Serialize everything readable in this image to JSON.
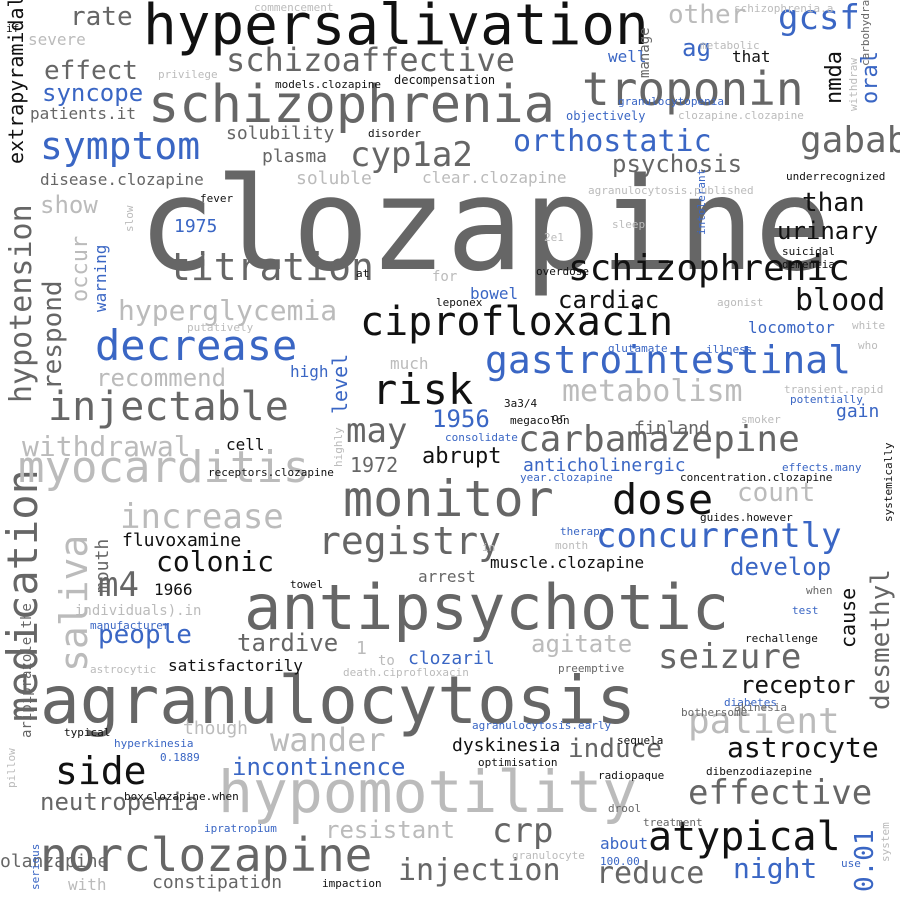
{
  "palette": {
    "dark": "#666666",
    "black": "#111111",
    "blue": "#3a66c4",
    "light": "#bbbbbb"
  },
  "words": [
    {
      "t": "clozapine",
      "c": "dark"
    },
    {
      "t": "agranulocytosis",
      "c": "dark"
    },
    {
      "t": "antipsychotic",
      "c": "dark"
    },
    {
      "t": "hypersalivation",
      "c": "black"
    },
    {
      "t": "hypomotility",
      "c": "light"
    },
    {
      "t": "schizophrenia",
      "c": "dark"
    },
    {
      "t": "norclozapine",
      "c": "dark"
    },
    {
      "t": "monitor",
      "c": "dark"
    },
    {
      "t": "ciprofloxacin",
      "c": "black"
    },
    {
      "t": "troponin",
      "c": "dark"
    },
    {
      "t": "medication",
      "c": "dark"
    },
    {
      "t": "myocarditis",
      "c": "light"
    },
    {
      "t": "schizophrenic",
      "c": "black"
    },
    {
      "t": "gastrointestinal",
      "c": "blue"
    },
    {
      "t": "decrease",
      "c": "blue"
    },
    {
      "t": "titration",
      "c": "dark"
    },
    {
      "t": "injectable",
      "c": "dark"
    },
    {
      "t": "carbamazepine",
      "c": "dark"
    },
    {
      "t": "atypical",
      "c": "black"
    },
    {
      "t": "registry",
      "c": "dark"
    },
    {
      "t": "concurrently",
      "c": "blue"
    },
    {
      "t": "schizoaffective",
      "c": "dark"
    },
    {
      "t": "saliva",
      "c": "light"
    },
    {
      "t": "dose",
      "c": "black"
    },
    {
      "t": "risk",
      "c": "black"
    },
    {
      "t": "symptom",
      "c": "blue"
    },
    {
      "t": "cyp1a2",
      "c": "dark"
    },
    {
      "t": "seizure",
      "c": "dark"
    },
    {
      "t": "patient",
      "c": "light"
    },
    {
      "t": "wander",
      "c": "light"
    },
    {
      "t": "side",
      "c": "black"
    },
    {
      "t": "crp",
      "c": "dark"
    },
    {
      "t": "gabab",
      "c": "dark"
    },
    {
      "t": "increase",
      "c": "light"
    },
    {
      "t": "metabolism",
      "c": "light"
    },
    {
      "t": "effective",
      "c": "dark"
    },
    {
      "t": "gcsf",
      "c": "blue"
    },
    {
      "t": "orthostatic",
      "c": "blue"
    },
    {
      "t": "blood",
      "c": "black"
    },
    {
      "t": "hypotension",
      "c": "dark"
    },
    {
      "t": "injection",
      "c": "dark"
    },
    {
      "t": "reduce",
      "c": "dark"
    },
    {
      "t": "desmethyl",
      "c": "dark"
    },
    {
      "t": "hyperglycemia",
      "c": "light"
    },
    {
      "t": "0.01",
      "c": "blue"
    },
    {
      "t": "may",
      "c": "dark"
    },
    {
      "t": "colonic",
      "c": "black"
    },
    {
      "t": "astrocyte",
      "c": "black"
    },
    {
      "t": "incontinence",
      "c": "blue"
    },
    {
      "t": "withdrawal",
      "c": "light"
    },
    {
      "t": "m4",
      "c": "dark"
    },
    {
      "t": "psychosis",
      "c": "dark"
    },
    {
      "t": "people",
      "c": "blue"
    },
    {
      "t": "neutropenia",
      "c": "dark"
    },
    {
      "t": "respond",
      "c": "dark"
    },
    {
      "t": "induce",
      "c": "dark"
    },
    {
      "t": "recommend",
      "c": "light"
    },
    {
      "t": "count",
      "c": "light"
    },
    {
      "t": "night",
      "c": "blue"
    },
    {
      "t": "resistant",
      "c": "light"
    },
    {
      "t": "agitate",
      "c": "light"
    },
    {
      "t": "than",
      "c": "black"
    },
    {
      "t": "urinary",
      "c": "black"
    },
    {
      "t": "receptor",
      "c": "black"
    },
    {
      "t": "develop",
      "c": "blue"
    },
    {
      "t": "tardive",
      "c": "dark"
    },
    {
      "t": "effect",
      "c": "dark"
    },
    {
      "t": "nmda",
      "c": "black"
    },
    {
      "t": "ag",
      "c": "blue"
    },
    {
      "t": "syncope",
      "c": "blue"
    },
    {
      "t": "rate",
      "c": "dark"
    },
    {
      "t": "other",
      "c": "light"
    },
    {
      "t": "cardiac",
      "c": "black"
    },
    {
      "t": "occur",
      "c": "light"
    },
    {
      "t": "abrupt",
      "c": "black"
    },
    {
      "t": "1956",
      "c": "blue"
    },
    {
      "t": "level",
      "c": "blue"
    },
    {
      "t": "oral",
      "c": "blue"
    },
    {
      "t": "extrapyramidal",
      "c": "black"
    },
    {
      "t": "1972",
      "c": "dark"
    },
    {
      "t": "show",
      "c": "light"
    },
    {
      "t": "cause",
      "c": "black"
    },
    {
      "t": "mouth",
      "c": "dark"
    },
    {
      "t": "anticholinergic",
      "c": "blue"
    },
    {
      "t": "dyskinesia",
      "c": "black"
    },
    {
      "t": "plasma",
      "c": "dark"
    },
    {
      "t": "solubility",
      "c": "dark"
    },
    {
      "t": "soluble",
      "c": "light"
    },
    {
      "t": "constipation",
      "c": "dark"
    },
    {
      "t": "fluvoxamine",
      "c": "black"
    },
    {
      "t": "olanzapine",
      "c": "dark"
    },
    {
      "t": "finland",
      "c": "dark"
    },
    {
      "t": "arrest",
      "c": "dark"
    },
    {
      "t": "muscle.clozapine",
      "c": "black"
    },
    {
      "t": "satisfactorily",
      "c": "black"
    },
    {
      "t": "clozaril",
      "c": "blue"
    },
    {
      "t": "1966",
      "c": "black"
    },
    {
      "t": "1975",
      "c": "blue"
    },
    {
      "t": "cell",
      "c": "black"
    },
    {
      "t": "gain",
      "c": "blue"
    },
    {
      "t": "bowel",
      "c": "blue"
    },
    {
      "t": "warning",
      "c": "blue"
    },
    {
      "t": "much",
      "c": "light"
    },
    {
      "t": "high",
      "c": "blue"
    },
    {
      "t": "locomotor",
      "c": "blue"
    },
    {
      "t": "though",
      "c": "light"
    },
    {
      "t": "about",
      "c": "blue"
    },
    {
      "t": "with",
      "c": "light"
    },
    {
      "t": "well",
      "c": "blue"
    },
    {
      "t": "that",
      "c": "black"
    },
    {
      "t": "manage",
      "c": "dark"
    },
    {
      "t": "severe",
      "c": "light"
    },
    {
      "t": "patients.it",
      "c": "dark"
    },
    {
      "t": "disease.clozapine",
      "c": "dark"
    },
    {
      "t": "clear.clozapine",
      "c": "light"
    },
    {
      "t": "aripiprazole.the",
      "c": "dark"
    },
    {
      "t": "individuals).in",
      "c": "light"
    },
    {
      "t": "1",
      "c": "light"
    },
    {
      "t": "to",
      "c": "light"
    },
    {
      "t": "for",
      "c": "light"
    },
    {
      "t": "objectively",
      "c": "blue"
    },
    {
      "t": "decompensation",
      "c": "black"
    },
    {
      "t": "models.clozapine",
      "c": "black"
    },
    {
      "t": "disorder",
      "c": "black"
    },
    {
      "t": "privilege",
      "c": "light"
    },
    {
      "t": "commencement",
      "c": "light"
    },
    {
      "t": "granulocytopenia",
      "c": "blue"
    },
    {
      "t": "metabolic",
      "c": "light"
    },
    {
      "t": "carbohydrate",
      "c": "dark"
    },
    {
      "t": "schizophrenia.a",
      "c": "light"
    },
    {
      "t": "clozapine.clozapine",
      "c": "light"
    },
    {
      "t": "underrecognized",
      "c": "black"
    },
    {
      "t": "agranulocytosis.published",
      "c": "light"
    },
    {
      "t": "withdraw",
      "c": "light"
    },
    {
      "t": "fever",
      "c": "black"
    },
    {
      "t": "intolerant",
      "c": "blue"
    },
    {
      "t": "sleep",
      "c": "light"
    },
    {
      "t": "2e1",
      "c": "light"
    },
    {
      "t": "overdose",
      "c": "black"
    },
    {
      "t": "suicidal",
      "c": "black"
    },
    {
      "t": "dementia",
      "c": "black"
    },
    {
      "t": "agonist",
      "c": "light"
    },
    {
      "t": "white",
      "c": "light"
    },
    {
      "t": "who",
      "c": "light"
    },
    {
      "t": "illness",
      "c": "blue"
    },
    {
      "t": "glutamate",
      "c": "blue"
    },
    {
      "t": "transient.rapid",
      "c": "light"
    },
    {
      "t": "potentially",
      "c": "blue"
    },
    {
      "t": "smoker",
      "c": "light"
    },
    {
      "t": "leponex",
      "c": "black"
    },
    {
      "t": "putatively",
      "c": "light"
    },
    {
      "t": "at",
      "c": "black"
    },
    {
      "t": "slow",
      "c": "light"
    },
    {
      "t": "if",
      "c": "black"
    },
    {
      "t": "3a3/4",
      "c": "black"
    },
    {
      "t": "megacolon",
      "c": "black"
    },
    {
      "t": "or",
      "c": "black"
    },
    {
      "t": "consolidate",
      "c": "blue"
    },
    {
      "t": "year.clozapine",
      "c": "blue"
    },
    {
      "t": "concentration.clozapine",
      "c": "black"
    },
    {
      "t": "effects.many",
      "c": "blue"
    },
    {
      "t": "systemically",
      "c": "black"
    },
    {
      "t": "guides.however",
      "c": "black"
    },
    {
      "t": "receptors.clozapine",
      "c": "black"
    },
    {
      "t": "highly",
      "c": "light"
    },
    {
      "t": "therapy",
      "c": "blue"
    },
    {
      "t": "month",
      "c": "light"
    },
    {
      "t": "in",
      "c": "light"
    },
    {
      "t": "towel",
      "c": "black"
    },
    {
      "t": "when",
      "c": "dark"
    },
    {
      "t": "test",
      "c": "blue"
    },
    {
      "t": "rechallenge",
      "c": "black"
    },
    {
      "t": "manufacturer",
      "c": "blue"
    },
    {
      "t": "astrocytic",
      "c": "light"
    },
    {
      "t": "death.ciprofloxacin",
      "c": "light"
    },
    {
      "t": "preemptive",
      "c": "dark"
    },
    {
      "t": "diabetes",
      "c": "blue"
    },
    {
      "t": "akinesia",
      "c": "dark"
    },
    {
      "t": "bothersome",
      "c": "dark"
    },
    {
      "t": "agranulocytosis.early",
      "c": "blue"
    },
    {
      "t": "typical",
      "c": "black"
    },
    {
      "t": "hyperkinesia",
      "c": "blue"
    },
    {
      "t": "sequela",
      "c": "black"
    },
    {
      "t": "0.1889",
      "c": "blue"
    },
    {
      "t": "optimisation",
      "c": "black"
    },
    {
      "t": "radiopaque",
      "c": "black"
    },
    {
      "t": "dibenzodiazepine",
      "c": "black"
    },
    {
      "t": "pillow",
      "c": "light"
    },
    {
      "t": "box",
      "c": "black"
    },
    {
      "t": "clozapine.when",
      "c": "black"
    },
    {
      "t": "ipratropium",
      "c": "blue"
    },
    {
      "t": "drool",
      "c": "dark"
    },
    {
      "t": "treatment",
      "c": "dark"
    },
    {
      "t": "use",
      "c": "blue"
    },
    {
      "t": "system",
      "c": "light"
    },
    {
      "t": "granulocyte",
      "c": "light"
    },
    {
      "t": "100.00",
      "c": "blue"
    },
    {
      "t": "serious",
      "c": "blue"
    },
    {
      "t": "impaction",
      "c": "black"
    }
  ]
}
